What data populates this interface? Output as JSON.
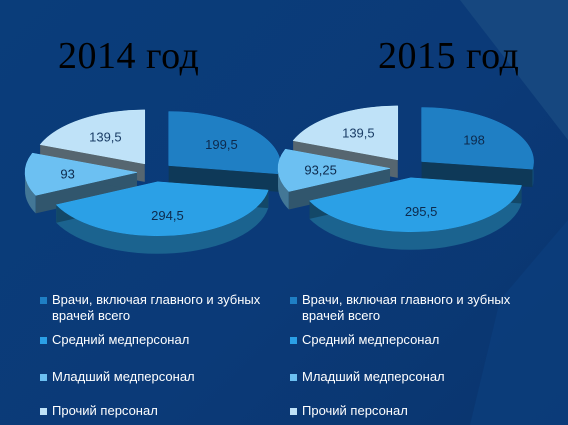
{
  "slide": {
    "titles": [
      "2014 год",
      "2015 год"
    ]
  },
  "legend": {
    "items": [
      {
        "label": "Врачи, включая главного и зубных врачей всего",
        "color": "#1f7fc4"
      },
      {
        "label": "Средний медперсонал",
        "color": "#2ba0e6"
      },
      {
        "label": "Младший медперсонал",
        "color": "#6cc0f2"
      },
      {
        "label": "Прочий персонал",
        "color": "#bfe2f8"
      }
    ]
  },
  "chart_data": [
    {
      "type": "pie",
      "title": "2014 год",
      "categories": [
        "Врачи, включая главного и зубных врачей всего",
        "Средний медперсонал",
        "Младший медперсонал",
        "Прочий персонал"
      ],
      "values": [
        199.5,
        294.5,
        93,
        139.5
      ],
      "labels": [
        "199,5",
        "294,5",
        "93",
        "139,5"
      ],
      "colors": [
        "#1f7fc4",
        "#2ba0e6",
        "#6cc0f2",
        "#bfe2f8"
      ],
      "exploded": true
    },
    {
      "type": "pie",
      "title": "2015 год",
      "categories": [
        "Врачи, включая главного и зубных врачей всего",
        "Средний медперсонал",
        "Младший медперсонал",
        "Прочий персонал"
      ],
      "values": [
        198,
        295.5,
        93.25,
        139.5
      ],
      "labels": [
        "198",
        "295,5",
        "93,25",
        "139,5"
      ],
      "colors": [
        "#1f7fc4",
        "#2ba0e6",
        "#6cc0f2",
        "#bfe2f8"
      ],
      "exploded": true
    }
  ]
}
